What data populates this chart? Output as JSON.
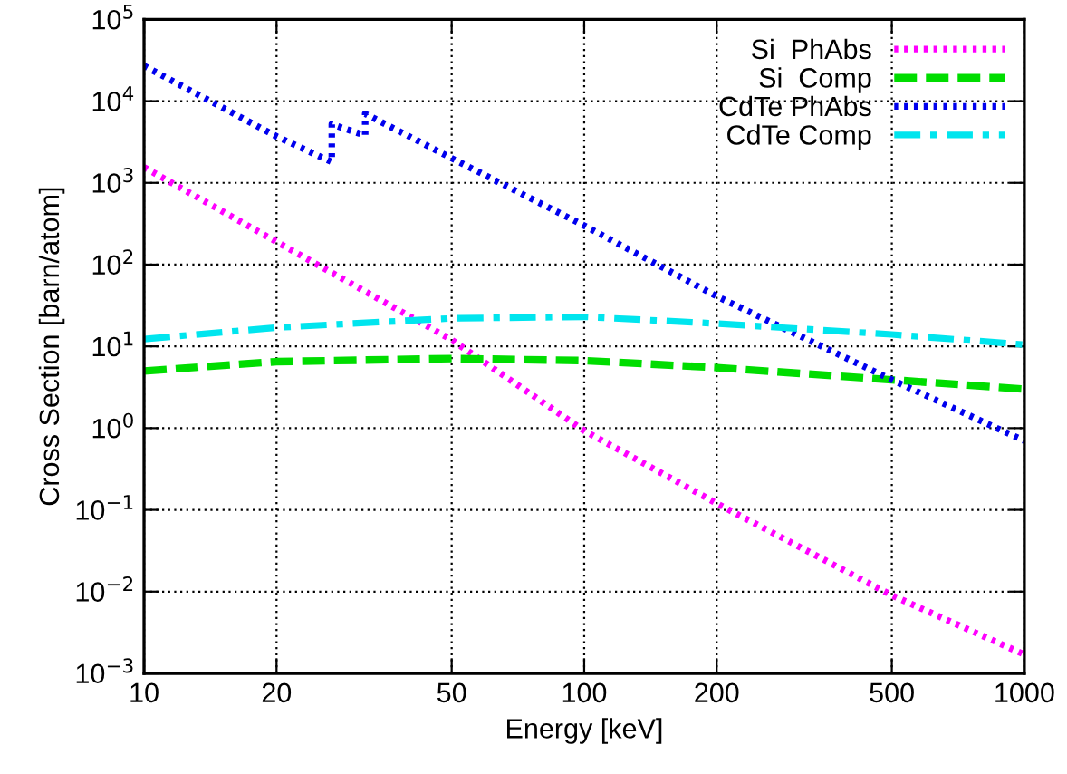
{
  "chart_data": {
    "type": "line",
    "xlabel": "Energy [keV]",
    "ylabel": "Cross Section [barn/atom]",
    "log": "xy",
    "grid": true,
    "legend": "top right",
    "xlim": [
      10,
      1000
    ],
    "xticks": [
      10,
      20,
      50,
      100,
      200,
      500,
      1000
    ],
    "ylim": [
      0.001,
      100000
    ],
    "yticks": [
      {
        "value": 0.001,
        "label": "10$^{−3}$"
      },
      {
        "value": 0.01,
        "label": "10$^{−2}$"
      },
      {
        "value": 0.1,
        "label": "10$^{−1}$"
      },
      {
        "value": 1,
        "label": "10$^{0}$"
      },
      {
        "value": 10,
        "label": "10$^{1}$"
      },
      {
        "value": 100,
        "label": "10$^{2}$"
      },
      {
        "value": 1000,
        "label": "10$^{3}$"
      },
      {
        "value": 10000,
        "label": "10$^{4}$"
      },
      {
        "value": 100000,
        "label": "10$^{5}$"
      }
    ],
    "series": [
      {
        "name": "Si  PhAbs",
        "color": "#ff00ff",
        "line_style": "dotted",
        "x": [
          10,
          20,
          50,
          100,
          200,
          500,
          1000
        ],
        "values": [
          1550,
          190,
          12,
          0.93,
          0.12,
          0.009,
          0.0017
        ]
      },
      {
        "name": "Si  Comp",
        "color": "#00dd00",
        "line_style": "dashed",
        "x": [
          10,
          20,
          50,
          100,
          200,
          500,
          1000
        ],
        "values": [
          5.0,
          6.5,
          7.1,
          6.7,
          5.5,
          3.9,
          3.0
        ]
      },
      {
        "name": "CdTe PhAbs",
        "color": "#0000ee",
        "line_style": "dotted",
        "x": [
          10,
          20,
          26.7,
          26.7,
          31.8,
          31.8,
          50,
          100,
          200,
          500,
          1000
        ],
        "values": [
          27000,
          3700,
          1800,
          5200,
          3800,
          7000,
          2000,
          300,
          41,
          3.9,
          0.7
        ]
      },
      {
        "name": "CdTe Comp",
        "color": "#00e5ee",
        "line_style": "dashdot",
        "x": [
          10,
          20,
          50,
          100,
          200,
          500,
          1000
        ],
        "values": [
          12.3,
          17,
          22,
          23,
          19,
          14,
          10.5
        ]
      }
    ]
  }
}
